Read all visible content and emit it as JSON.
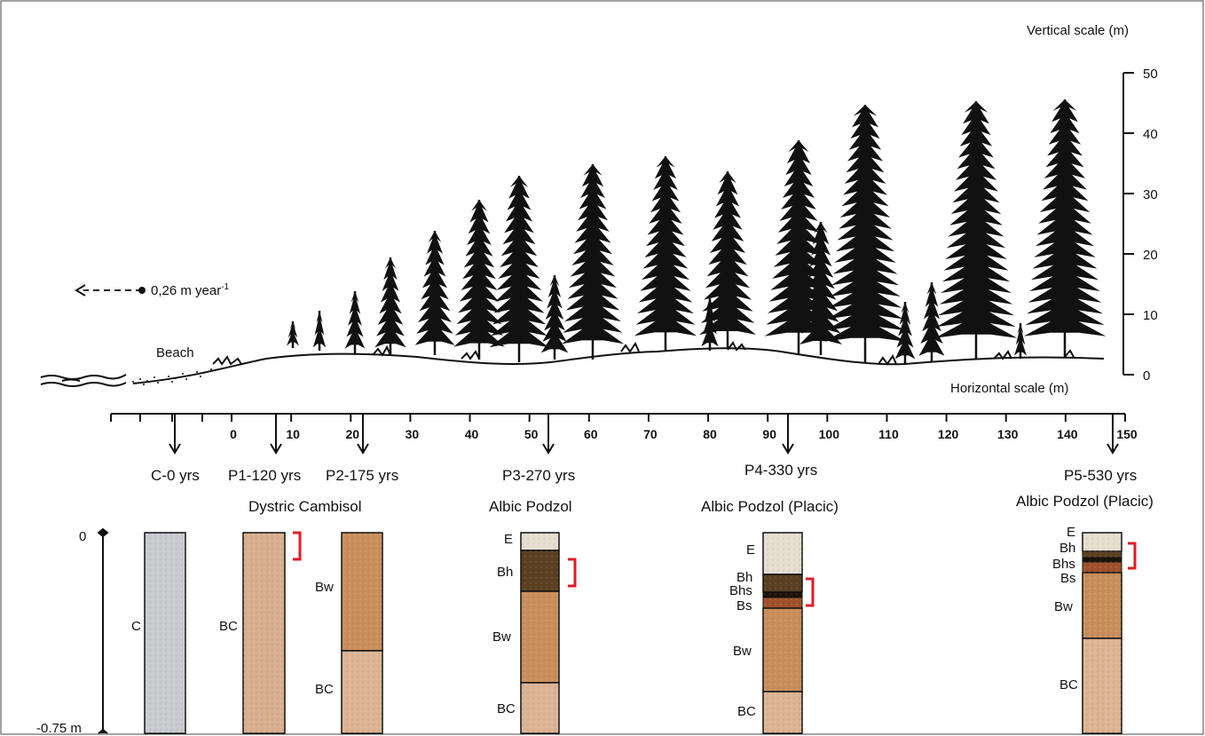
{
  "vertical_scale": {
    "title": "Vertical scale (m)",
    "ticks": [
      50,
      40,
      30,
      20,
      10,
      0
    ]
  },
  "horizontal_scale": {
    "title": "Horizontal scale (m)",
    "ticks": [
      0,
      10,
      20,
      30,
      40,
      50,
      60,
      70,
      80,
      90,
      100,
      110,
      120,
      130,
      140,
      150
    ]
  },
  "migration": {
    "label": "0,26 m year",
    "superscript": "-1"
  },
  "beach_label": "Beach",
  "depth_axis": {
    "top": "0",
    "bottom": "-0.75 m"
  },
  "sites": [
    {
      "id": "C",
      "label": "C-0 yrs"
    },
    {
      "id": "P1",
      "label": "P1-120 yrs"
    },
    {
      "id": "P2",
      "label": "P2-175 yrs"
    },
    {
      "id": "P3",
      "label": "P3-270 yrs"
    },
    {
      "id": "P4",
      "label": "P4-330 yrs"
    },
    {
      "id": "P5",
      "label": "P5-530 yrs"
    }
  ],
  "soil_types": {
    "cambisol": "Dystric Cambisol",
    "podzol": "Albic Podzol",
    "podzol_placic_p4": "Albic Podzol (Placic)",
    "podzol_placic_p5": "Albic Podzol (Placic)"
  },
  "profiles": [
    {
      "id": "C",
      "horizons": [
        {
          "name": "C",
          "color": "#c9cbcf"
        }
      ]
    },
    {
      "id": "P1",
      "horizons": [
        {
          "name": "BC",
          "color": "#d9b08f"
        }
      ]
    },
    {
      "id": "P2",
      "horizons": [
        {
          "name": "Bw",
          "color": "#c98f5c"
        },
        {
          "name": "BC",
          "color": "#ddb594"
        }
      ]
    },
    {
      "id": "P3",
      "horizons": [
        {
          "name": "E",
          "color": "#e6ded0"
        },
        {
          "name": "Bh",
          "color": "#5a4122"
        },
        {
          "name": "Bw",
          "color": "#c98f5c"
        },
        {
          "name": "BC",
          "color": "#ddb594"
        }
      ]
    },
    {
      "id": "P4",
      "horizons": [
        {
          "name": "E",
          "color": "#e6ded0"
        },
        {
          "name": "Bh",
          "color": "#5a4122"
        },
        {
          "name": "Bhs",
          "color": "#1c1209"
        },
        {
          "name": "Bs",
          "color": "#a0522d"
        },
        {
          "name": "Bw",
          "color": "#c98f5c"
        },
        {
          "name": "BC",
          "color": "#ddb594"
        }
      ]
    },
    {
      "id": "P5",
      "horizons": [
        {
          "name": "E",
          "color": "#e6ded0"
        },
        {
          "name": "Bh",
          "color": "#5a4122"
        },
        {
          "name": "Bhs",
          "color": "#1c1209"
        },
        {
          "name": "Bs",
          "color": "#a0522d"
        },
        {
          "name": "Bw",
          "color": "#c98f5c"
        },
        {
          "name": "BC",
          "color": "#ddb594"
        }
      ]
    }
  ],
  "colors": {
    "line": "#111111",
    "bracket": "#e31b23",
    "tree": "#111111"
  }
}
